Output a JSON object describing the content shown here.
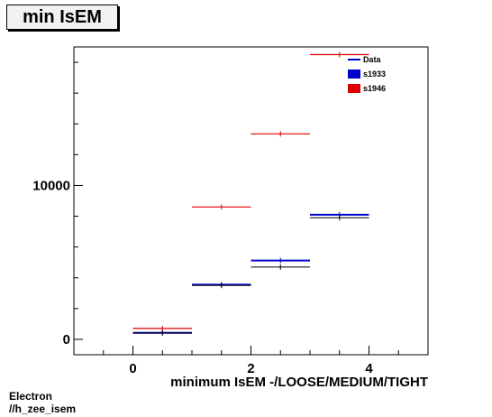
{
  "title": "min IsEM",
  "footer": {
    "line1": "Electron",
    "line2": "//h_zee_isem"
  },
  "chart_data": {
    "type": "scatter",
    "title": "min IsEM",
    "xlabel": "minimum IsEM -/LOOSE/MEDIUM/TIGHT",
    "ylabel": "",
    "xlim": [
      -1,
      5
    ],
    "ylim": [
      -1000,
      19000
    ],
    "x_ticks": [
      0,
      2,
      4
    ],
    "y_ticks": [
      0,
      10000
    ],
    "bin_width": 1,
    "grid": false,
    "legend_position": "top-right",
    "series": [
      {
        "name": "Data",
        "color": "#000000",
        "style": "points",
        "x": [
          0.5,
          1.5,
          2.5,
          3.5
        ],
        "y": [
          420,
          3500,
          4700,
          7900
        ]
      },
      {
        "name": "s1933",
        "color": "#0000cc",
        "style": "bin",
        "x": [
          0.5,
          1.5,
          2.5,
          3.5
        ],
        "y": [
          420,
          3550,
          5120,
          8100
        ]
      },
      {
        "name": "s1946",
        "color": "#dd0000",
        "style": "bin",
        "x": [
          0.5,
          1.5,
          2.5,
          3.5
        ],
        "y": [
          710,
          8600,
          13350,
          18500
        ]
      }
    ]
  }
}
